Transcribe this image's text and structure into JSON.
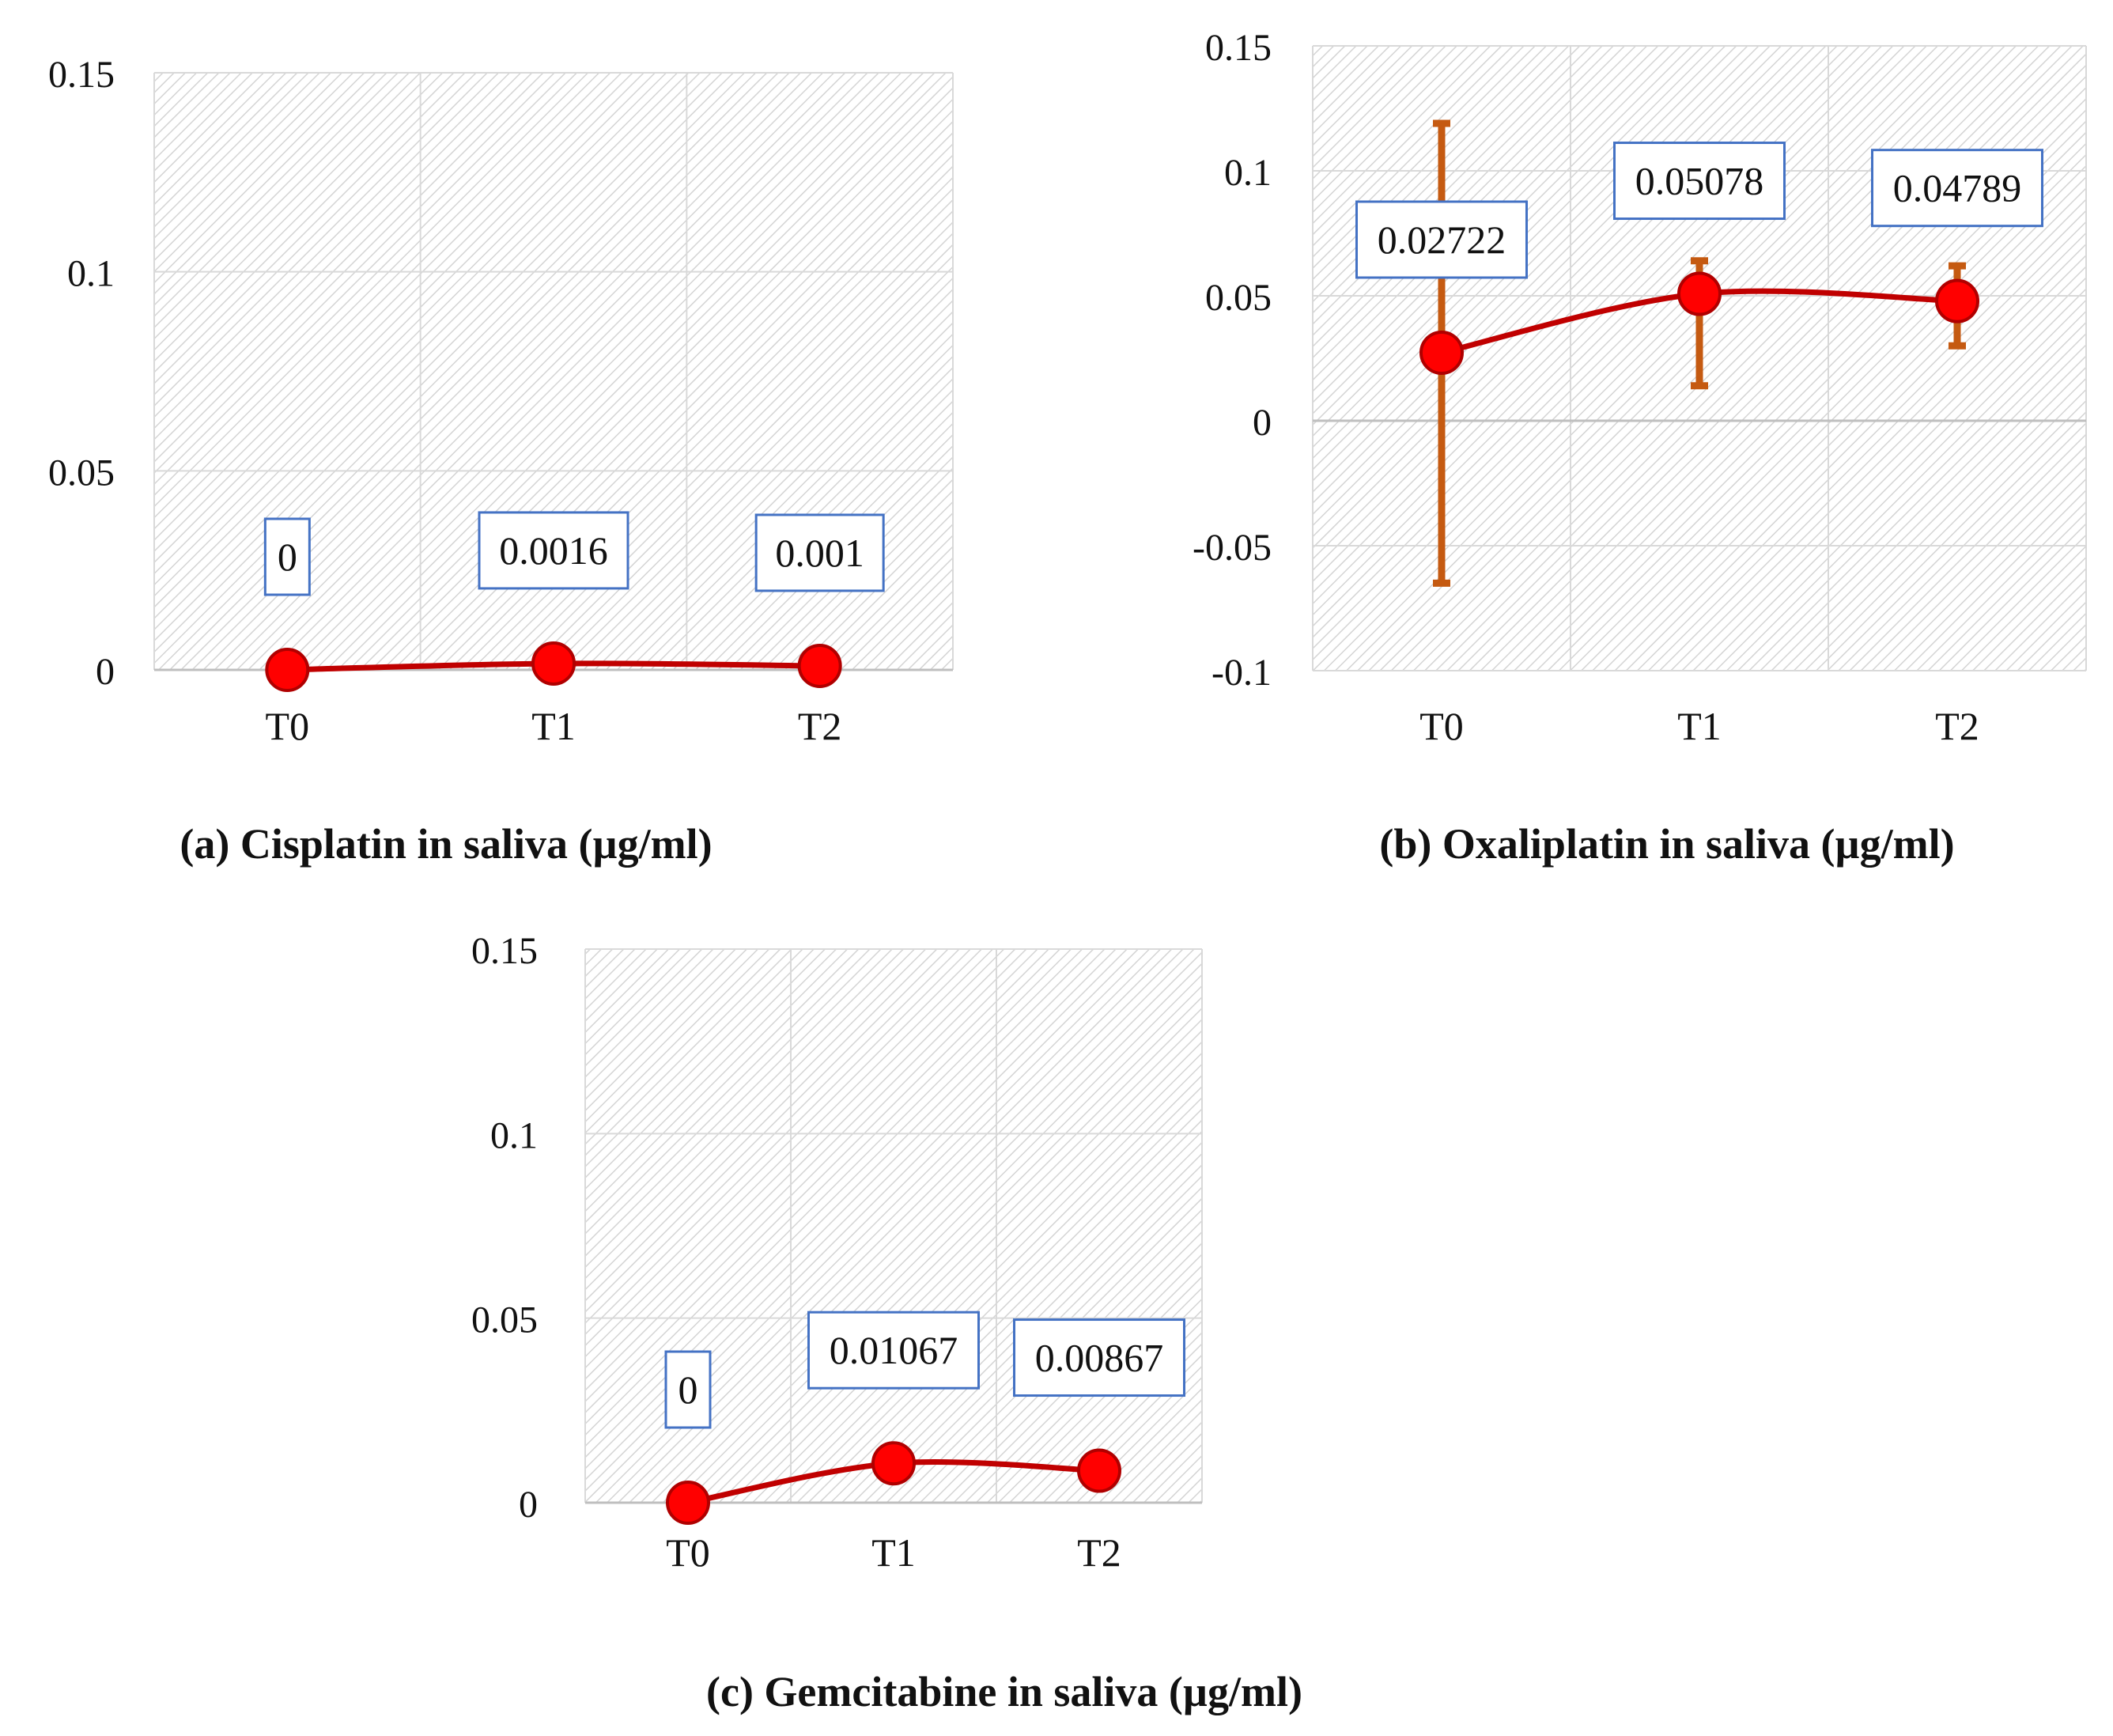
{
  "chart_data": [
    {
      "type": "line",
      "title": "(a) Cisplatin in saliva (µg/ml)",
      "categories": [
        "T0",
        "T1",
        "T2"
      ],
      "series": [
        {
          "name": "Cisplatin",
          "values": [
            0,
            0.0016,
            0.001
          ],
          "labels": [
            "0",
            "0.0016",
            "0.001"
          ]
        }
      ],
      "error_bars": null,
      "ylim": [
        0,
        0.15
      ],
      "yticks": [
        0,
        0.05,
        0.1,
        0.15
      ],
      "ytick_labels": [
        "0",
        "0.05",
        "0.1",
        "0.15"
      ],
      "grid": true,
      "xlabel": "",
      "ylabel": ""
    },
    {
      "type": "line",
      "title": "(b) Oxaliplatin in saliva (µg/ml)",
      "categories": [
        "T0",
        "T1",
        "T2"
      ],
      "series": [
        {
          "name": "Oxaliplatin",
          "values": [
            0.02722,
            0.05078,
            0.04789
          ],
          "labels": [
            "0.02722",
            "0.05078",
            "0.04789"
          ]
        }
      ],
      "error_bars": {
        "low": [
          -0.065,
          0.014,
          0.03
        ],
        "high": [
          0.119,
          0.064,
          0.062
        ]
      },
      "ylim": [
        -0.1,
        0.15
      ],
      "yticks": [
        -0.1,
        -0.05,
        0,
        0.05,
        0.1,
        0.15
      ],
      "ytick_labels": [
        "-0.1",
        "-0.05",
        "0",
        "0.05",
        "0.1",
        "0.15"
      ],
      "grid": true,
      "xlabel": "",
      "ylabel": ""
    },
    {
      "type": "line",
      "title": "(c) Gemcitabine in saliva (µg/ml)",
      "categories": [
        "T0",
        "T1",
        "T2"
      ],
      "series": [
        {
          "name": "Gemcitabine",
          "values": [
            0,
            0.01067,
            0.00867
          ],
          "labels": [
            "0",
            "0.01067",
            "0.00867"
          ]
        }
      ],
      "error_bars": null,
      "ylim": [
        0,
        0.15
      ],
      "yticks": [
        0,
        0.05,
        0.1,
        0.15
      ],
      "ytick_labels": [
        "0",
        "0.05",
        "0.1",
        "0.15"
      ],
      "grid": true,
      "xlabel": "",
      "ylabel": ""
    }
  ],
  "colors": {
    "line": "#c00000",
    "marker_fill": "#ff0000",
    "marker_edge": "#b00000",
    "error_bar": "#c55a11",
    "label_border": "#4472c4",
    "grid": "#d9d9d9",
    "hatch": "#d4d4d4"
  }
}
